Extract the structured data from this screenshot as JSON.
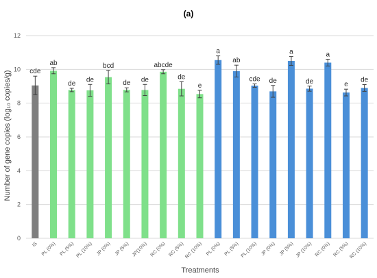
{
  "chart_data": {
    "type": "bar",
    "panel_label": "(a)",
    "xlabel": "Treatments",
    "ylabel": "Number of gene copies (log₁₀ copies/g)",
    "ylim": [
      0,
      12
    ],
    "yticks": [
      0,
      2,
      4,
      6,
      8,
      10,
      12
    ],
    "grid": true,
    "legend": "none",
    "categories": [
      "IS",
      "PL (0%)",
      "PL (5%)",
      "PL (10%)",
      "JP (0%)",
      "JP (5%)",
      "JP(10%)",
      "RC (0%)",
      "RC (5%)",
      "RC (10%)",
      "PL (0%)",
      "PL (5%)",
      "PL (10%)",
      "JP (0%)",
      "JP (5%)",
      "JP (10%)",
      "RC (0%)",
      "RC (5%)",
      "RC (10%)"
    ],
    "values": [
      9.05,
      9.92,
      8.78,
      8.76,
      9.54,
      8.79,
      8.78,
      9.86,
      8.85,
      8.54,
      10.55,
      9.9,
      9.04,
      8.7,
      10.5,
      8.86,
      10.4,
      8.63,
      8.9
    ],
    "errors": [
      0.55,
      0.18,
      0.1,
      0.35,
      0.4,
      0.12,
      0.33,
      0.12,
      0.42,
      0.22,
      0.25,
      0.35,
      0.1,
      0.35,
      0.26,
      0.15,
      0.2,
      0.2,
      0.2
    ],
    "significance": [
      "cde",
      "ab",
      "de",
      "de",
      "bcd",
      "de",
      "de",
      "abcde",
      "de",
      "e",
      "a",
      "ab",
      "cde",
      "de",
      "a",
      "de",
      "a",
      "e",
      "de"
    ],
    "groups": [
      "initial",
      "green",
      "green",
      "green",
      "green",
      "green",
      "green",
      "green",
      "green",
      "green",
      "blue",
      "blue",
      "blue",
      "blue",
      "blue",
      "blue",
      "blue",
      "blue",
      "blue"
    ],
    "colors": {
      "initial": "#7f7f7f",
      "green": "#7fe08a",
      "blue": "#4a8fd8",
      "grid": "#d9d9d9",
      "error_bar": "#404040"
    }
  }
}
